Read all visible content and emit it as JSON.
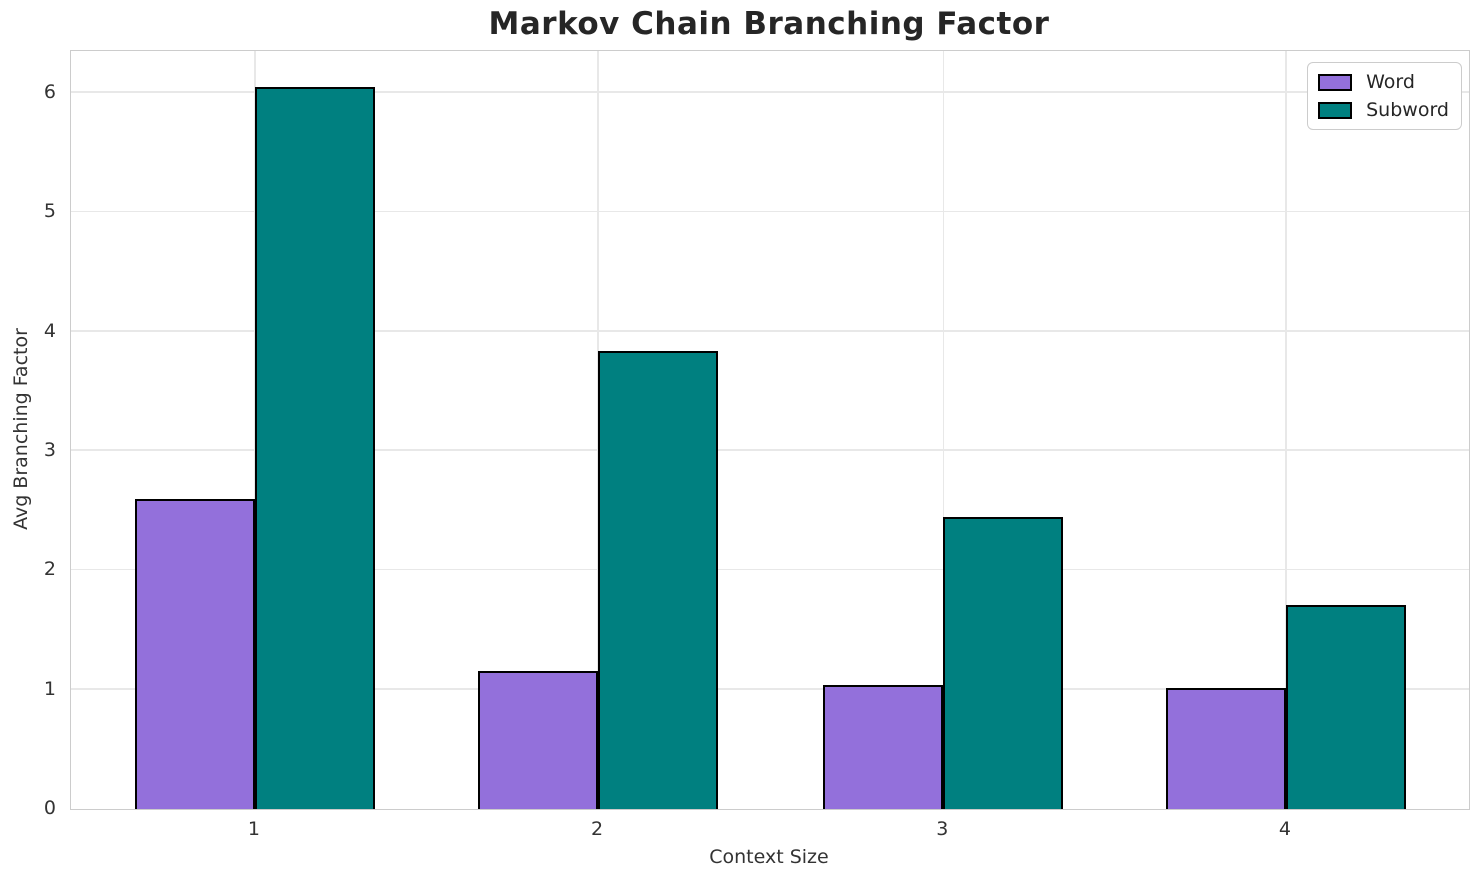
{
  "chart_data": {
    "type": "bar",
    "title": "Markov Chain Branching Factor",
    "xlabel": "Context Size",
    "ylabel": "Avg Branching Factor",
    "categories": [
      "1",
      "2",
      "3",
      "4"
    ],
    "series": [
      {
        "name": "Word",
        "color": "#9370DB",
        "values": [
          2.6,
          1.16,
          1.04,
          1.01
        ]
      },
      {
        "name": "Subword",
        "color": "#008080",
        "values": [
          6.05,
          3.84,
          2.45,
          1.71
        ]
      }
    ],
    "yticks": [
      "0",
      "1",
      "2",
      "3",
      "4",
      "5",
      "6"
    ],
    "ylim": [
      0,
      6.35
    ],
    "grid": true,
    "legend_position": "upper right",
    "bar_edge_color": "#000000",
    "grid_color": "#e8e8e8",
    "spine_color": "#cccccc",
    "text_color": "#262626"
  }
}
